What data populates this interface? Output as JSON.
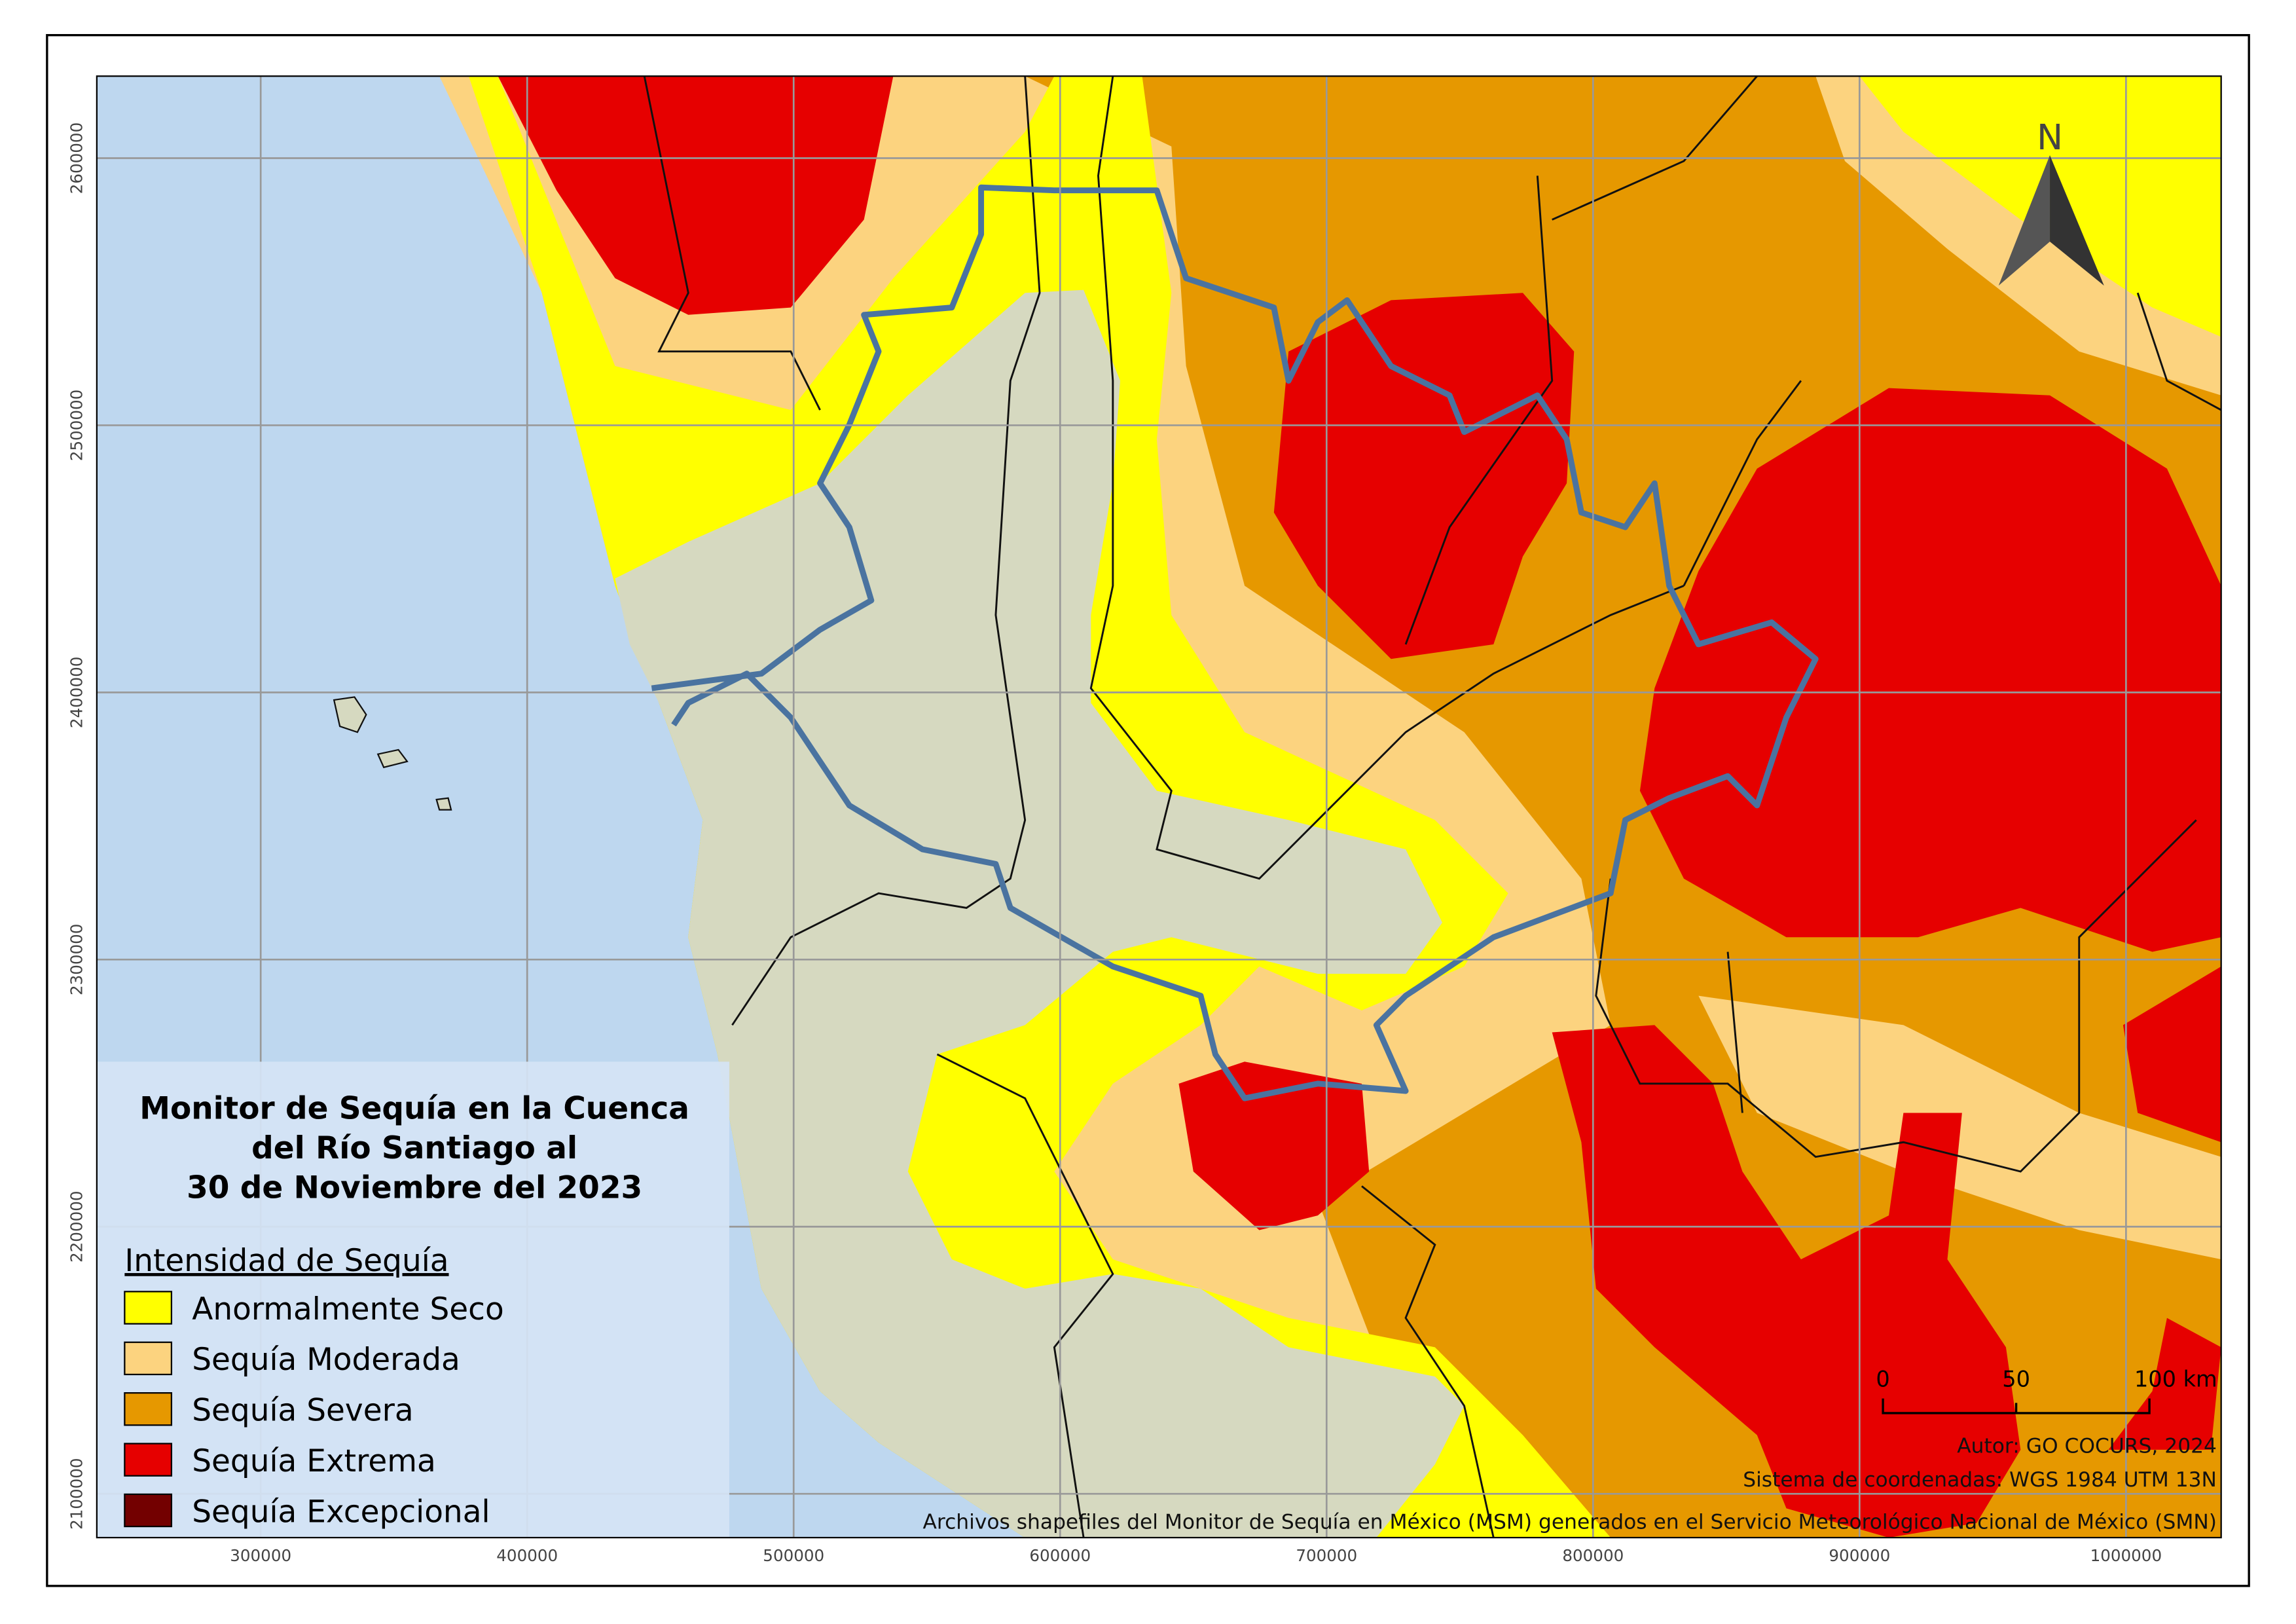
{
  "title": [
    "Monitor de Sequía en la Cuenca",
    "del Río Santiago al",
    "30 de Noviembre del 2023"
  ],
  "legend": {
    "title": "Intensidad de Sequía",
    "items": [
      {
        "label": "Anormalmente Seco",
        "color": "#ffff00"
      },
      {
        "label": "Sequía Moderada",
        "color": "#fcd37f"
      },
      {
        "label": "Sequía Severa",
        "color": "#e69800"
      },
      {
        "label": "Sequía Extrema",
        "color": "#e60000"
      },
      {
        "label": "Sequía Excepcional",
        "color": "#730000"
      }
    ]
  },
  "axes": {
    "x": {
      "range": [
        238500,
        1035700
      ],
      "ticks": [
        300000,
        400000,
        500000,
        600000,
        700000,
        800000,
        900000,
        1000000
      ]
    },
    "y": {
      "range": [
        2083600,
        2630700
      ],
      "ticks": [
        2100000,
        2200000,
        2300000,
        2400000,
        2500000,
        2600000
      ]
    }
  },
  "north": "N",
  "scale": {
    "labels": [
      "0",
      "50",
      "100 km"
    ]
  },
  "credits": [
    "Autor: GO COCURS, 2024",
    "Sistema de coordenadas: WGS 1984 UTM 13N",
    "Archivos shapefiles del Monitor de Sequía en México (MSM) generados en el Servicio Meteorológico Nacional de México (SMN)"
  ]
}
